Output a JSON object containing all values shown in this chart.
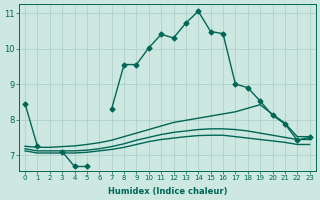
{
  "xlabel": "Humidex (Indice chaleur)",
  "bg_color": "#cce8e0",
  "grid_color": "#aaccc4",
  "line_color": "#006655",
  "xlim": [
    -0.5,
    23.5
  ],
  "ylim": [
    6.55,
    11.25
  ],
  "yticks": [
    7,
    8,
    9,
    10,
    11
  ],
  "xticks": [
    0,
    1,
    2,
    3,
    4,
    5,
    6,
    7,
    8,
    9,
    10,
    11,
    12,
    13,
    14,
    15,
    16,
    17,
    18,
    19,
    20,
    21,
    22,
    23
  ],
  "lines": [
    {
      "x": [
        0,
        1,
        3,
        4,
        5,
        7,
        8,
        9,
        10,
        11,
        12,
        13,
        14,
        15,
        16,
        17,
        18,
        19,
        20,
        21,
        22,
        23
      ],
      "y": [
        8.45,
        7.25,
        7.1,
        6.68,
        6.68,
        8.3,
        9.55,
        9.55,
        10.02,
        10.4,
        10.3,
        10.72,
        11.05,
        10.48,
        10.42,
        9.0,
        8.9,
        8.52,
        8.12,
        7.88,
        7.42,
        7.5
      ],
      "breaks_before": [
        3,
        7
      ],
      "marker": "D",
      "marker_size": 2.5,
      "linewidth": 1.0,
      "zorder": 5
    },
    {
      "x": [
        0,
        1,
        2,
        3,
        4,
        5,
        6,
        7,
        8,
        9,
        10,
        11,
        12,
        13,
        14,
        15,
        16,
        17,
        18,
        19,
        20,
        21,
        22,
        23
      ],
      "y": [
        7.25,
        7.22,
        7.22,
        7.24,
        7.26,
        7.3,
        7.35,
        7.42,
        7.52,
        7.62,
        7.72,
        7.82,
        7.92,
        7.98,
        8.04,
        8.1,
        8.16,
        8.22,
        8.32,
        8.42,
        8.15,
        7.9,
        7.52,
        7.52
      ],
      "breaks_before": [],
      "marker": null,
      "marker_size": 0,
      "linewidth": 1.0,
      "zorder": 3
    },
    {
      "x": [
        0,
        1,
        2,
        3,
        4,
        5,
        6,
        7,
        8,
        9,
        10,
        11,
        12,
        13,
        14,
        15,
        16,
        17,
        18,
        19,
        20,
        21,
        22,
        23
      ],
      "y": [
        7.18,
        7.12,
        7.12,
        7.12,
        7.12,
        7.14,
        7.18,
        7.24,
        7.32,
        7.42,
        7.5,
        7.58,
        7.64,
        7.68,
        7.72,
        7.74,
        7.74,
        7.72,
        7.68,
        7.62,
        7.56,
        7.5,
        7.44,
        7.44
      ],
      "breaks_before": [],
      "marker": null,
      "marker_size": 0,
      "linewidth": 1.0,
      "zorder": 3
    },
    {
      "x": [
        0,
        1,
        2,
        3,
        4,
        5,
        6,
        7,
        8,
        9,
        10,
        11,
        12,
        13,
        14,
        15,
        16,
        17,
        18,
        19,
        20,
        21,
        22,
        23
      ],
      "y": [
        7.12,
        7.06,
        7.06,
        7.06,
        7.06,
        7.08,
        7.12,
        7.16,
        7.22,
        7.3,
        7.38,
        7.44,
        7.48,
        7.52,
        7.55,
        7.56,
        7.56,
        7.52,
        7.48,
        7.44,
        7.4,
        7.36,
        7.3,
        7.3
      ],
      "breaks_before": [],
      "marker": null,
      "marker_size": 0,
      "linewidth": 1.0,
      "zorder": 3
    }
  ]
}
